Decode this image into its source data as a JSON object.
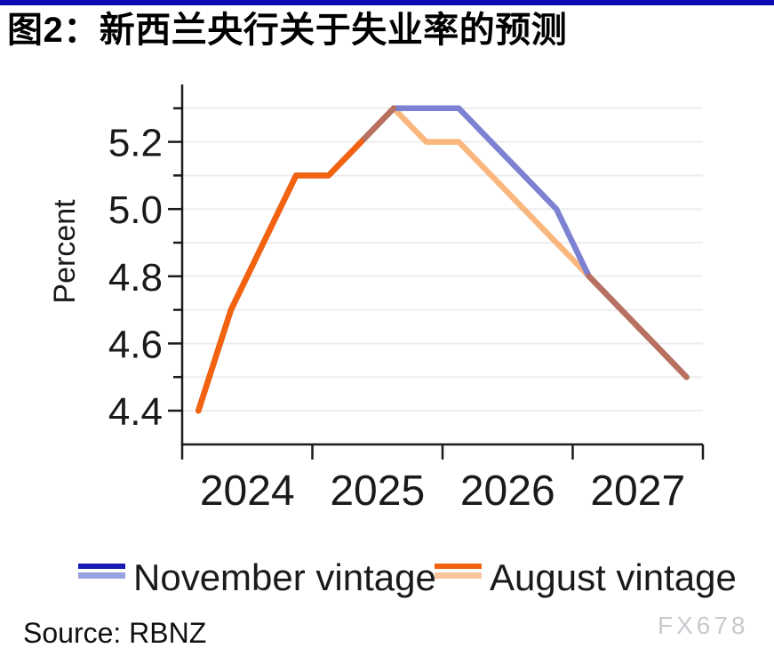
{
  "title": "图2：新西兰央行关于失业率的预测",
  "source": "Source: RBNZ",
  "watermark": "FX678",
  "legend": {
    "items": [
      {
        "label": "November vintage",
        "history_color": "#1a1ab5",
        "forecast_color": "#9aa1e0"
      },
      {
        "label": "August vintage",
        "history_color": "#f2620f",
        "forecast_color": "#fbc49c"
      }
    ]
  },
  "colors": {
    "top_bar": "#0d0db5",
    "axis": "#1a1a1a",
    "grid": "#ededed",
    "november_line": "#7d81d1",
    "august_line": "#f9b77e",
    "history_line": "#f2620f",
    "overlap_line": "#b8705f",
    "watermark": "#c8c9ce"
  },
  "chart_data": {
    "type": "line",
    "title": "图2：新西兰央行关于失业率的预测",
    "xlabel": "",
    "ylabel": "Percent",
    "x_tick_labels": [
      "2024",
      "2025",
      "2026",
      "2027"
    ],
    "categories": [
      "2024Q1",
      "2024Q2",
      "2024Q3",
      "2024Q4",
      "2025Q1",
      "2025Q2",
      "2025Q3",
      "2025Q4",
      "2026Q1",
      "2026Q2",
      "2026Q3",
      "2026Q4",
      "2027Q1",
      "2027Q2",
      "2027Q3",
      "2027Q4"
    ],
    "series": [
      {
        "name": "November vintage",
        "values": [
          4.4,
          4.7,
          4.9,
          5.1,
          5.1,
          5.2,
          5.3,
          5.3,
          5.3,
          5.2,
          5.1,
          5.0,
          4.8,
          4.7,
          4.6,
          4.5
        ]
      },
      {
        "name": "August vintage",
        "values": [
          4.4,
          4.7,
          4.9,
          5.1,
          5.1,
          5.2,
          5.3,
          5.2,
          5.2,
          5.1,
          5.0,
          4.9,
          4.8,
          4.7,
          4.6,
          4.5
        ]
      }
    ],
    "ylim": [
      4.3,
      5.37
    ],
    "yticks_labeled": [
      4.4,
      4.6,
      4.8,
      5.0,
      5.2
    ],
    "yticks_minor": [
      4.5,
      4.7,
      4.9,
      5.1,
      5.3
    ],
    "gridlines": [
      4.4,
      4.5,
      4.6,
      4.7,
      4.8,
      4.9,
      5.0,
      5.1,
      5.2,
      5.3
    ],
    "history_end_index": 5,
    "grid": "horizontal",
    "legend_position": "bottom"
  }
}
